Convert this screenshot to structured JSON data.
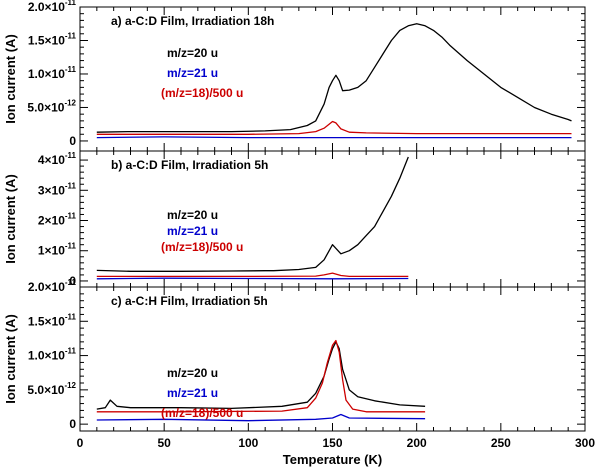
{
  "chart_data": [
    {
      "type": "line",
      "panel": "a",
      "title": "a)  a-C:D Film, Irradiation 18h",
      "ylabel": "Ion current (A)",
      "xlabel": "",
      "xlim": [
        0,
        300
      ],
      "ylim": [
        -1.5e-12,
        2e-11
      ],
      "yticks": [
        {
          "value": 0,
          "label": "0",
          "exp": ""
        },
        {
          "value": 5e-12,
          "label": "5.0×10",
          "exp": "-12"
        },
        {
          "value": 1e-11,
          "label": "1.0×10",
          "exp": "-11"
        },
        {
          "value": 1.5e-11,
          "label": "1.5×10",
          "exp": "-11"
        },
        {
          "value": 2e-11,
          "label": "2.0×10",
          "exp": "-11"
        }
      ],
      "series": [
        {
          "name": "m/z=20 u",
          "color": "#000000",
          "x": [
            10,
            30,
            60,
            90,
            110,
            125,
            135,
            140,
            145,
            148,
            150,
            152,
            154,
            156,
            160,
            165,
            170,
            175,
            180,
            185,
            190,
            195,
            200,
            205,
            210,
            215,
            220,
            230,
            240,
            250,
            260,
            270,
            280,
            290,
            292
          ],
          "y": [
            1.3e-12,
            1.4e-12,
            1.4e-12,
            1.4e-12,
            1.5e-12,
            1.7e-12,
            2.3e-12,
            3e-12,
            5.5e-12,
            8e-12,
            9e-12,
            9.8e-12,
            9e-12,
            7.5e-12,
            7.6e-12,
            8e-12,
            9e-12,
            1.1e-11,
            1.3e-11,
            1.5e-11,
            1.65e-11,
            1.72e-11,
            1.75e-11,
            1.72e-11,
            1.65e-11,
            1.55e-11,
            1.42e-11,
            1.2e-11,
            1e-11,
            8e-12,
            6.5e-12,
            5e-12,
            4e-12,
            3.2e-12,
            3e-12
          ]
        },
        {
          "name": "m/z=21 u",
          "color": "#0000cc",
          "x": [
            10,
            50,
            100,
            150,
            200,
            250,
            292
          ],
          "y": [
            5e-13,
            6e-13,
            5e-13,
            5e-13,
            5e-13,
            5e-13,
            5e-13
          ]
        },
        {
          "name": "(m/z=18)/500 u",
          "color": "#cc0000",
          "x": [
            10,
            100,
            130,
            140,
            145,
            148,
            150,
            152,
            155,
            160,
            170,
            200,
            250,
            292
          ],
          "y": [
            1e-12,
            1e-12,
            1.1e-12,
            1.4e-12,
            1.9e-12,
            2.5e-12,
            2.9e-12,
            2.7e-12,
            1.8e-12,
            1.3e-12,
            1.2e-12,
            1.1e-12,
            1.1e-12,
            1.1e-12
          ]
        }
      ],
      "legend": [
        "m/z=20 u",
        "m/z=21 u",
        "(m/z=18)/500 u"
      ]
    },
    {
      "type": "line",
      "panel": "b",
      "title": "b)  a-C:D Film, Irradiation 5h",
      "ylabel": "Ion current (A)",
      "xlabel": "",
      "xlim": [
        0,
        300
      ],
      "ylim": [
        -2e-12,
        4.3e-11
      ],
      "yticks": [
        {
          "value": 0,
          "label": "0",
          "exp": ""
        },
        {
          "value": 1e-11,
          "label": "1×10",
          "exp": "-11"
        },
        {
          "value": 2e-11,
          "label": "2×10",
          "exp": "-11"
        },
        {
          "value": 3e-11,
          "label": "3×10",
          "exp": "-11"
        },
        {
          "value": 4e-11,
          "label": "4×10",
          "exp": "-11"
        }
      ],
      "series": [
        {
          "name": "m/z=20 u",
          "color": "#000000",
          "x": [
            10,
            30,
            60,
            90,
            110,
            115,
            130,
            140,
            145,
            150,
            155,
            160,
            165,
            170,
            175,
            180,
            185,
            190,
            195
          ],
          "y": [
            3.5e-12,
            3.2e-12,
            3.2e-12,
            3.3e-12,
            3.4e-12,
            3.4e-12,
            3.8e-12,
            4.5e-12,
            7e-12,
            1.2e-11,
            9e-12,
            1e-11,
            1.2e-11,
            1.5e-11,
            1.8e-11,
            2.3e-11,
            2.8e-11,
            3.4e-11,
            4.1e-11
          ]
        },
        {
          "name": "m/z=21 u",
          "color": "#0000cc",
          "x": [
            10,
            50,
            100,
            150,
            195
          ],
          "y": [
            7e-13,
            9e-13,
            8e-13,
            7e-13,
            8e-13
          ]
        },
        {
          "name": "(m/z=18)/500 u",
          "color": "#cc0000",
          "x": [
            10,
            100,
            140,
            145,
            150,
            155,
            160,
            195
          ],
          "y": [
            1.5e-12,
            1.5e-12,
            1.6e-12,
            2e-12,
            2.6e-12,
            1.8e-12,
            1.5e-12,
            1.5e-12
          ]
        }
      ],
      "legend": [
        "m/z=20 u",
        "m/z=21 u",
        "(m/z=18)/500 u"
      ]
    },
    {
      "type": "line",
      "panel": "c",
      "title": "c)  a-C:H Film, Irradiation 5h",
      "ylabel": "Ion current (A)",
      "xlabel": "Temperature (K)",
      "xlim": [
        0,
        300
      ],
      "ylim": [
        -1e-12,
        2e-11
      ],
      "xticks": [
        0,
        50,
        100,
        150,
        200,
        250,
        300
      ],
      "yticks": [
        {
          "value": 0,
          "label": "0",
          "exp": ""
        },
        {
          "value": 5e-12,
          "label": "5.0×10",
          "exp": "-12"
        },
        {
          "value": 1e-11,
          "label": "1.0×10",
          "exp": "-11"
        },
        {
          "value": 1.5e-11,
          "label": "1.5×10",
          "exp": "-11"
        },
        {
          "value": 2e-11,
          "label": "2.0×10",
          "exp": "-11"
        }
      ],
      "series": [
        {
          "name": "m/z=20 u",
          "color": "#000000",
          "x": [
            10,
            15,
            18,
            22,
            30,
            60,
            90,
            120,
            135,
            140,
            145,
            148,
            150,
            152,
            154,
            156,
            160,
            165,
            175,
            190,
            205
          ],
          "y": [
            2.2e-12,
            2.4e-12,
            3.5e-12,
            2.6e-12,
            2.4e-12,
            2.4e-12,
            2.3e-12,
            2.6e-12,
            3.2e-12,
            4.5e-12,
            7e-12,
            9.5e-12,
            1.1e-11,
            1.2e-11,
            1.1e-11,
            8e-12,
            5e-12,
            4e-12,
            3.4e-12,
            2.8e-12,
            2.6e-12
          ]
        },
        {
          "name": "m/z=21 u",
          "color": "#0000cc",
          "x": [
            10,
            50,
            100,
            140,
            150,
            155,
            160,
            205
          ],
          "y": [
            6e-13,
            7e-13,
            5e-13,
            7e-13,
            9e-13,
            1.4e-12,
            9e-13,
            8e-13
          ]
        },
        {
          "name": "(m/z=18)/500 u",
          "color": "#cc0000",
          "x": [
            10,
            60,
            120,
            135,
            140,
            144,
            147,
            150,
            152,
            154,
            156,
            158,
            162,
            170,
            205
          ],
          "y": [
            1.8e-12,
            1.8e-12,
            1.9e-12,
            2.4e-12,
            3.8e-12,
            6e-12,
            9e-12,
            1.15e-11,
            1.22e-11,
            1.05e-11,
            6.5e-12,
            3.5e-12,
            2.2e-12,
            1.8e-12,
            1.8e-12
          ]
        }
      ],
      "legend": [
        "m/z=20 u",
        "m/z=21 u",
        "(m/z=18)/500 u"
      ]
    }
  ]
}
